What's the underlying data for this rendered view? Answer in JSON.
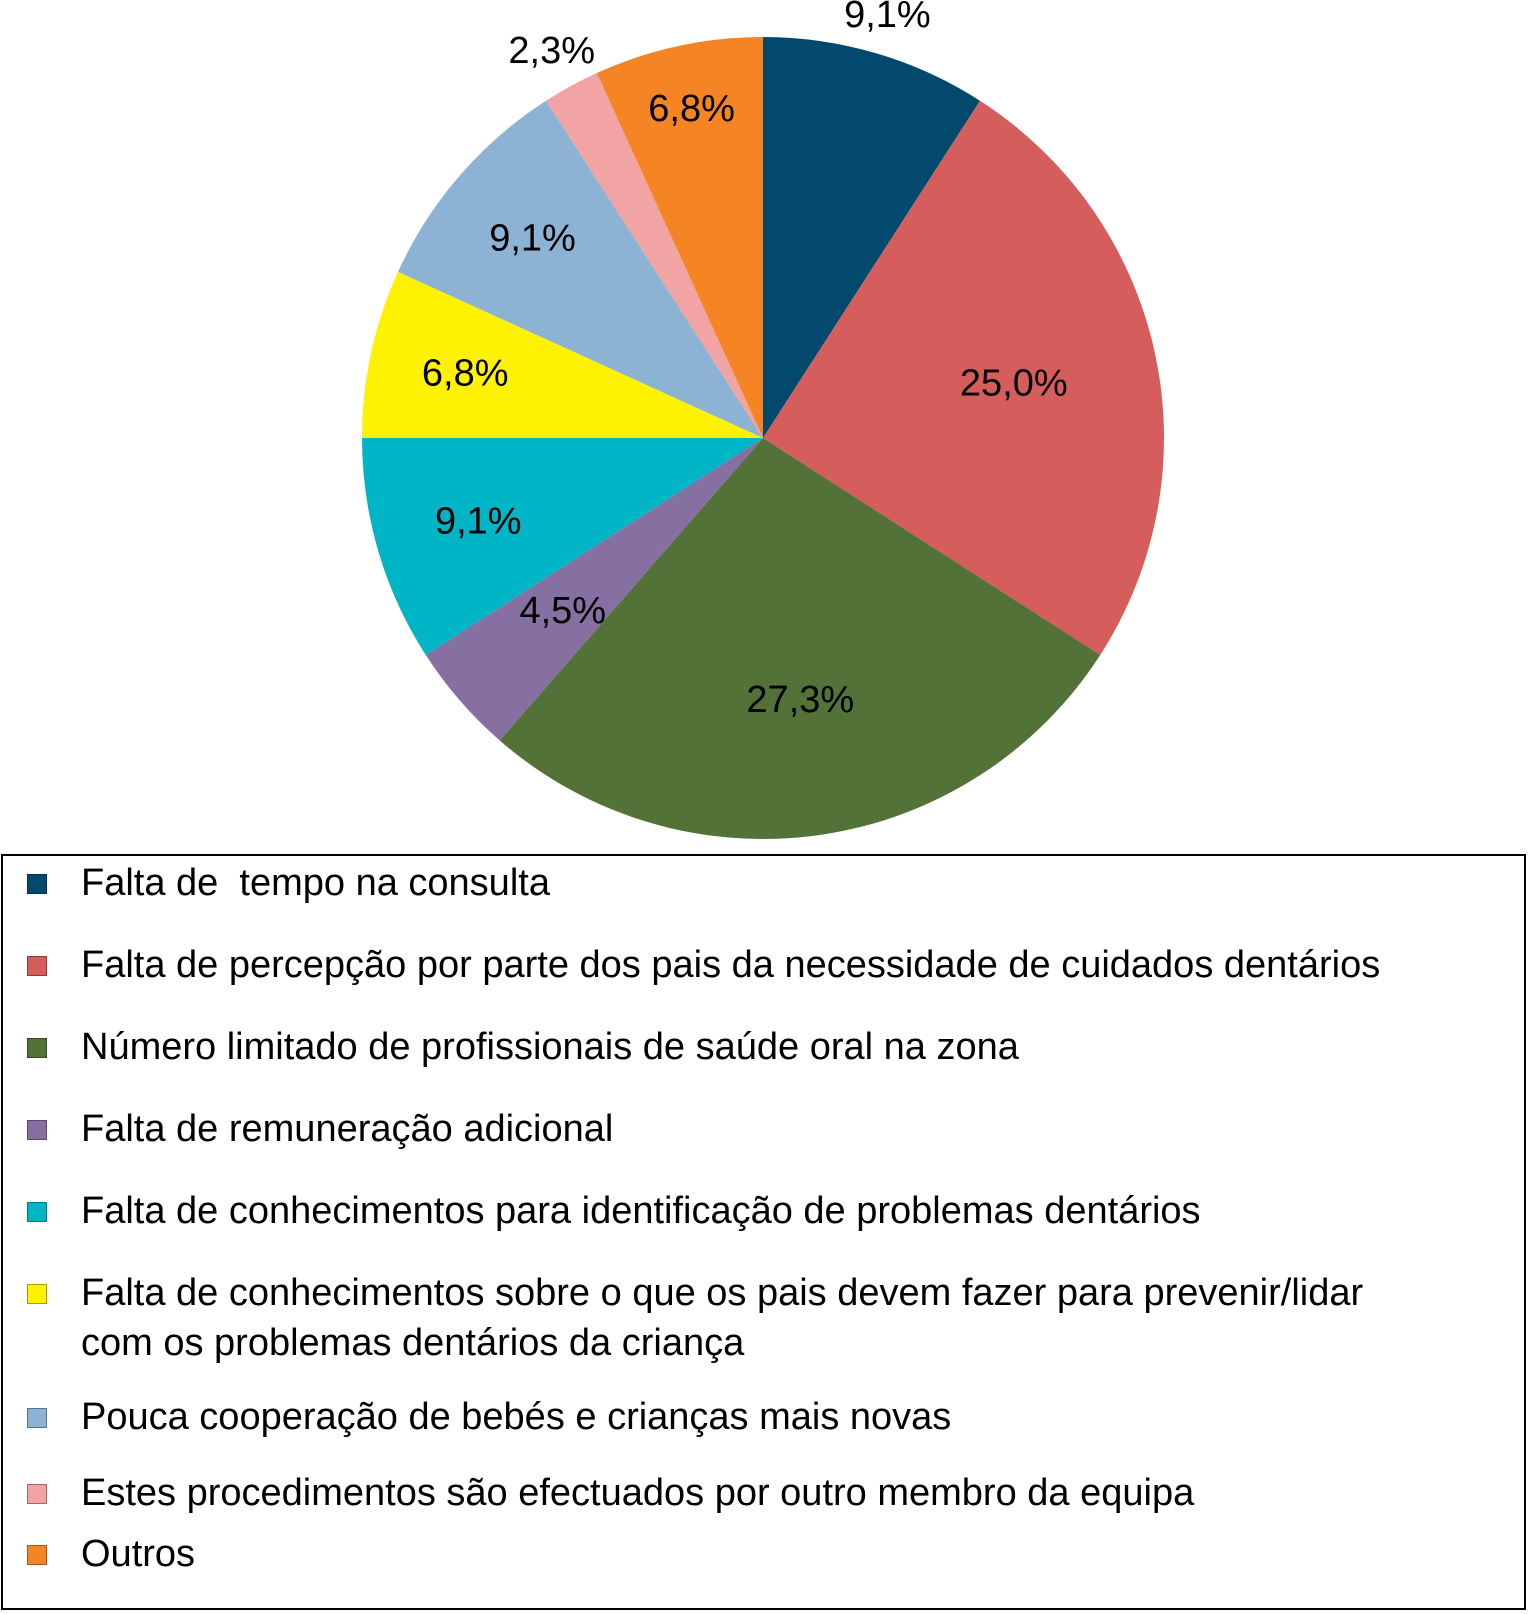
{
  "chart_data": {
    "type": "pie",
    "title": "",
    "start_angle_deg": 0,
    "direction": "clockwise",
    "legend_position": "bottom",
    "slices": [
      {
        "label": "Falta de  tempo na consulta",
        "value": 9.1,
        "value_label": "9,1%",
        "color": "#03496d"
      },
      {
        "label": "Falta de percepção por parte dos pais da necessidade de cuidados dentários",
        "value": 25.0,
        "value_label": "25,0%",
        "color": "#d55d5b"
      },
      {
        "label": "Número limitado de profissionais de saúde oral na zona",
        "value": 27.3,
        "value_label": "27,3%",
        "color": "#527237"
      },
      {
        "label": "Falta de remuneração adicional",
        "value": 4.5,
        "value_label": "4,5%",
        "color": "#8670a2"
      },
      {
        "label": "Falta de conhecimentos para identificação de problemas dentários",
        "value": 9.1,
        "value_label": "9,1%",
        "color": "#00b5c6"
      },
      {
        "label": "Falta de conhecimentos sobre o que os pais devem fazer para prevenir/lidar\ncom os problemas dentários da criança",
        "value": 6.8,
        "value_label": "6,8%",
        "color": "#fff200"
      },
      {
        "label": "Pouca cooperação de bebés e crianças mais novas",
        "value": 9.1,
        "value_label": "9,1%",
        "color": "#8cb2d4"
      },
      {
        "label": "Estes procedimentos são efectuados por outro membro da equipa",
        "value": 2.3,
        "value_label": "2,3%",
        "color": "#f2a3a3"
      },
      {
        "label": "Outros",
        "value": 6.8,
        "value_label": "6,8%",
        "color": "#f48424"
      }
    ]
  }
}
